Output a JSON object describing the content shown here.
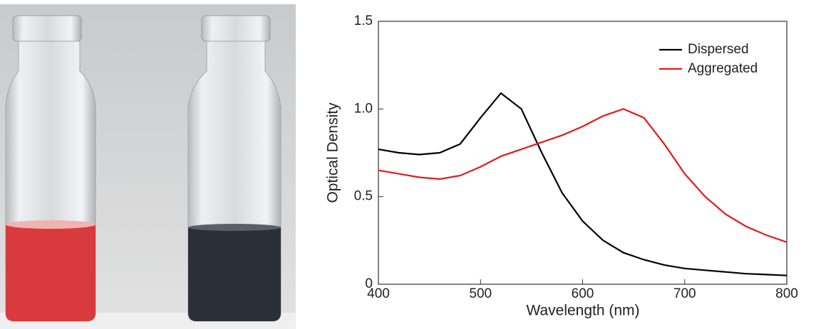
{
  "chart_data": {
    "type": "line",
    "x_label": "Wavelength (nm)",
    "y_label": "Optical Density",
    "x": [
      400,
      420,
      440,
      460,
      480,
      500,
      520,
      540,
      560,
      580,
      600,
      620,
      640,
      660,
      680,
      700,
      720,
      740,
      760,
      780,
      800
    ],
    "series": [
      {
        "name": "Dispersed",
        "color": "#000000",
        "values": [
          0.77,
          0.75,
          0.74,
          0.75,
          0.8,
          0.95,
          1.09,
          1.0,
          0.75,
          0.52,
          0.36,
          0.25,
          0.18,
          0.14,
          0.11,
          0.09,
          0.08,
          0.07,
          0.06,
          0.055,
          0.05
        ]
      },
      {
        "name": "Aggregated",
        "color": "#e31a1c",
        "values": [
          0.65,
          0.63,
          0.61,
          0.6,
          0.62,
          0.67,
          0.73,
          0.77,
          0.81,
          0.85,
          0.9,
          0.96,
          1.0,
          0.95,
          0.8,
          0.63,
          0.5,
          0.4,
          0.33,
          0.28,
          0.24
        ]
      }
    ],
    "xlim": [
      400,
      800
    ],
    "xticks": [
      400,
      500,
      600,
      700,
      800
    ],
    "ylim": [
      0,
      1.5
    ],
    "yticks": [
      0,
      0.5,
      {
        "value": 1,
        "label": "1.0"
      },
      1.5
    ],
    "legend": "top-right"
  }
}
